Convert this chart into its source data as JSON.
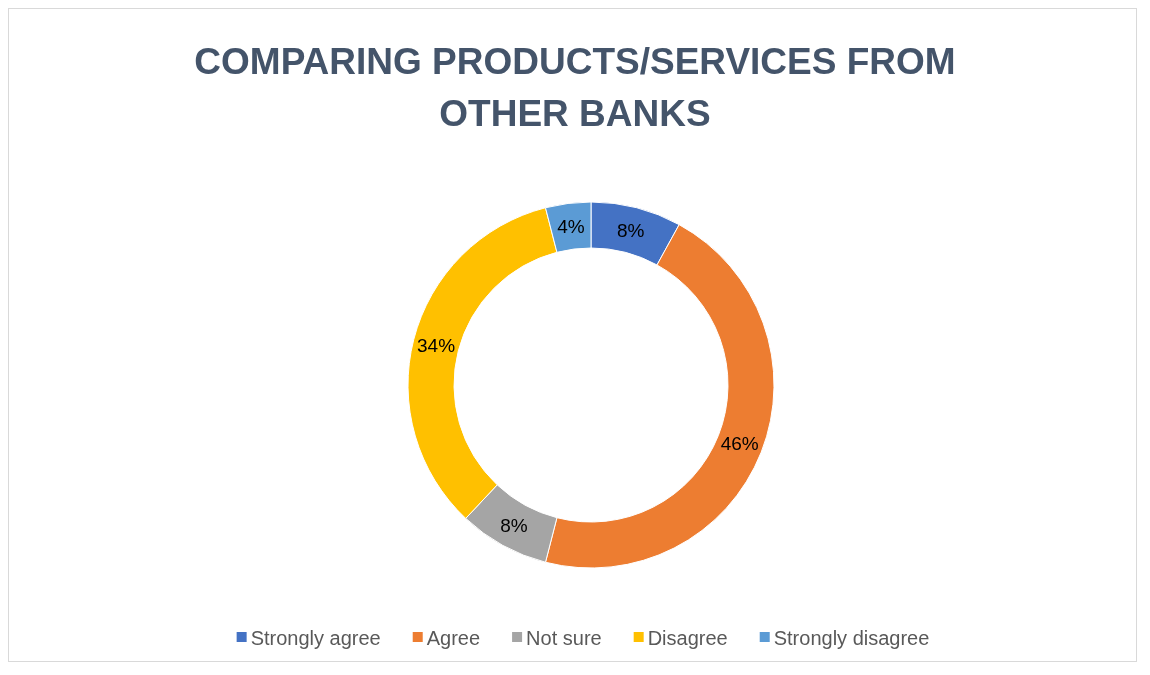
{
  "chart_data": {
    "type": "donut",
    "title": "COMPARING PRODUCTS/SERVICES FROM OTHER BANKS",
    "categories": [
      "Strongly agree",
      "Agree",
      "Not sure",
      "Disagree",
      "Strongly disagree"
    ],
    "values": [
      8,
      46,
      8,
      34,
      4
    ],
    "colors": [
      "#4472c4",
      "#ed7d31",
      "#a5a5a5",
      "#ffc000",
      "#5b9bd5"
    ],
    "value_labels": [
      "8%",
      "46%",
      "8%",
      "34%",
      "4%"
    ],
    "legend": "bottom"
  }
}
